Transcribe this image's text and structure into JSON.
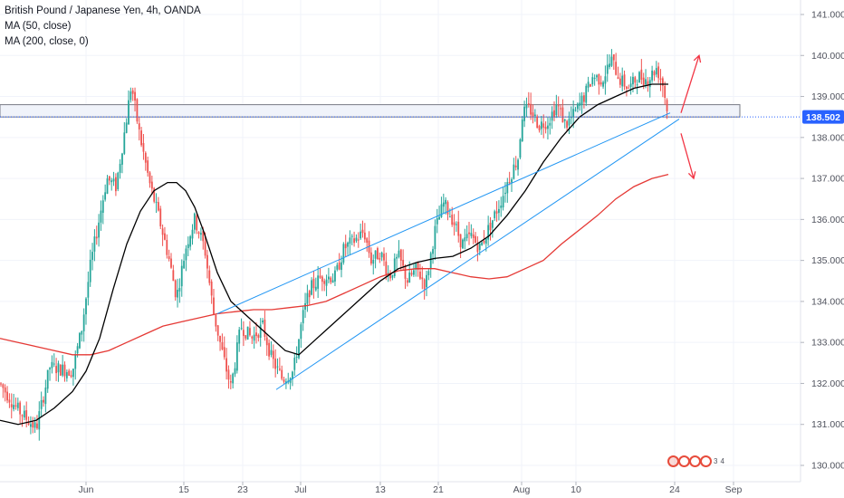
{
  "legend": {
    "title": "British Pound / Japanese Yen, 4h, OANDA",
    "ma50": "MA (50, close)",
    "ma200": "MA (200, close, 0)"
  },
  "current_price": "138.502",
  "events": {
    "labels": [
      "3",
      "4"
    ]
  },
  "colors": {
    "up": "#26a69a",
    "down": "#ef5350",
    "ma50": "#000000",
    "ma200": "#e53935",
    "trendline": "#2196f3",
    "arrow": "#f23645",
    "price_line": "#2962ff",
    "zone": "#787b86"
  },
  "chart_data": {
    "type": "candlestick",
    "instrument": "British Pound / Japanese Yen",
    "timeframe": "4h",
    "source": "OANDA",
    "x_tick_labels": [
      "Jun",
      "15",
      "23",
      "Jul",
      "13",
      "21",
      "Aug",
      "10",
      "24",
      "Sep"
    ],
    "y_ticks": [
      "130.000",
      "131.000",
      "132.000",
      "133.000",
      "134.000",
      "135.000",
      "136.000",
      "137.000",
      "138.000",
      "139.000",
      "140.000",
      "141.000"
    ],
    "ylim": [
      129.9,
      141.6
    ],
    "last_price": 138.502,
    "close_path": [
      [
        0,
        132.0
      ],
      [
        18,
        131.4
      ],
      [
        40,
        130.9
      ],
      [
        55,
        132.4
      ],
      [
        80,
        132.3
      ],
      [
        90,
        133.3
      ],
      [
        100,
        134.9
      ],
      [
        118,
        137.0
      ],
      [
        128,
        136.8
      ],
      [
        138,
        138.2
      ],
      [
        145,
        139.3
      ],
      [
        153,
        138.2
      ],
      [
        165,
        136.9
      ],
      [
        176,
        136.0
      ],
      [
        186,
        135.1
      ],
      [
        195,
        134.1
      ],
      [
        206,
        135.4
      ],
      [
        215,
        136.0
      ],
      [
        226,
        135.3
      ],
      [
        236,
        133.7
      ],
      [
        247,
        132.6
      ],
      [
        255,
        131.9
      ],
      [
        266,
        133.4
      ],
      [
        278,
        133.1
      ],
      [
        290,
        133.4
      ],
      [
        300,
        132.6
      ],
      [
        312,
        132.1
      ],
      [
        324,
        132.3
      ],
      [
        334,
        133.6
      ],
      [
        342,
        134.3
      ],
      [
        355,
        134.6
      ],
      [
        370,
        134.6
      ],
      [
        380,
        135.3
      ],
      [
        392,
        135.5
      ],
      [
        402,
        135.7
      ],
      [
        410,
        135.0
      ],
      [
        420,
        135.2
      ],
      [
        430,
        134.6
      ],
      [
        440,
        135.1
      ],
      [
        450,
        134.5
      ],
      [
        460,
        134.8
      ],
      [
        470,
        134.4
      ],
      [
        480,
        135.7
      ],
      [
        490,
        136.4
      ],
      [
        500,
        136.0
      ],
      [
        510,
        135.4
      ],
      [
        520,
        135.6
      ],
      [
        530,
        135.3
      ],
      [
        540,
        135.8
      ],
      [
        552,
        136.4
      ],
      [
        562,
        137.0
      ],
      [
        572,
        137.5
      ],
      [
        577,
        138.6
      ],
      [
        585,
        138.7
      ],
      [
        595,
        138.3
      ],
      [
        605,
        138.4
      ],
      [
        615,
        138.8
      ],
      [
        625,
        138.3
      ],
      [
        635,
        138.6
      ],
      [
        645,
        139.0
      ],
      [
        655,
        139.5
      ],
      [
        665,
        139.4
      ],
      [
        675,
        139.9
      ],
      [
        685,
        139.4
      ],
      [
        695,
        139.2
      ],
      [
        705,
        139.5
      ],
      [
        715,
        139.4
      ],
      [
        725,
        139.7
      ],
      [
        732,
        139.3
      ],
      [
        738,
        138.5
      ]
    ],
    "ma50_path": [
      [
        0,
        131.1
      ],
      [
        20,
        131.0
      ],
      [
        40,
        131.1
      ],
      [
        60,
        131.4
      ],
      [
        80,
        131.8
      ],
      [
        95,
        132.3
      ],
      [
        110,
        133.1
      ],
      [
        125,
        134.3
      ],
      [
        140,
        135.4
      ],
      [
        155,
        136.2
      ],
      [
        170,
        136.7
      ],
      [
        185,
        136.9
      ],
      [
        195,
        136.9
      ],
      [
        205,
        136.7
      ],
      [
        215,
        136.3
      ],
      [
        225,
        135.7
      ],
      [
        240,
        134.7
      ],
      [
        255,
        134.0
      ],
      [
        270,
        133.7
      ],
      [
        285,
        133.4
      ],
      [
        300,
        133.1
      ],
      [
        315,
        132.8
      ],
      [
        330,
        132.7
      ],
      [
        345,
        133.0
      ],
      [
        360,
        133.3
      ],
      [
        380,
        133.7
      ],
      [
        400,
        134.1
      ],
      [
        420,
        134.5
      ],
      [
        440,
        134.8
      ],
      [
        460,
        134.95
      ],
      [
        480,
        135.05
      ],
      [
        500,
        135.1
      ],
      [
        520,
        135.3
      ],
      [
        540,
        135.6
      ],
      [
        560,
        136.1
      ],
      [
        580,
        136.7
      ],
      [
        600,
        137.4
      ],
      [
        620,
        138.0
      ],
      [
        640,
        138.5
      ],
      [
        660,
        138.8
      ],
      [
        680,
        139.0
      ],
      [
        700,
        139.2
      ],
      [
        720,
        139.3
      ],
      [
        738,
        139.3
      ]
    ],
    "ma200_path": [
      [
        0,
        133.1
      ],
      [
        20,
        133.0
      ],
      [
        40,
        132.9
      ],
      [
        60,
        132.8
      ],
      [
        80,
        132.7
      ],
      [
        100,
        132.7
      ],
      [
        120,
        132.8
      ],
      [
        140,
        133.0
      ],
      [
        160,
        133.2
      ],
      [
        180,
        133.4
      ],
      [
        200,
        133.5
      ],
      [
        220,
        133.6
      ],
      [
        240,
        133.7
      ],
      [
        260,
        133.75
      ],
      [
        280,
        133.8
      ],
      [
        300,
        133.8
      ],
      [
        320,
        133.85
      ],
      [
        340,
        133.9
      ],
      [
        360,
        134.0
      ],
      [
        380,
        134.2
      ],
      [
        400,
        134.4
      ],
      [
        420,
        134.6
      ],
      [
        440,
        134.75
      ],
      [
        460,
        134.8
      ],
      [
        480,
        134.8
      ],
      [
        500,
        134.7
      ],
      [
        520,
        134.6
      ],
      [
        540,
        134.55
      ],
      [
        560,
        134.6
      ],
      [
        580,
        134.8
      ],
      [
        600,
        135.0
      ],
      [
        620,
        135.4
      ],
      [
        640,
        135.75
      ],
      [
        660,
        136.1
      ],
      [
        680,
        136.5
      ],
      [
        700,
        136.8
      ],
      [
        720,
        137.0
      ],
      [
        738,
        137.1
      ]
    ],
    "annotations": {
      "resistance_zone": {
        "from": 138.5,
        "to": 138.8
      },
      "channel_upper": [
        [
          240,
          133.7
        ],
        [
          740,
          138.6
        ]
      ],
      "channel_lower": [
        [
          305,
          131.85
        ],
        [
          750,
          138.45
        ]
      ],
      "arrow_up": [
        [
          752,
          138.6
        ],
        [
          772,
          140.0
        ]
      ],
      "arrow_down": [
        [
          752,
          138.1
        ],
        [
          766,
          137.0
        ]
      ]
    }
  }
}
